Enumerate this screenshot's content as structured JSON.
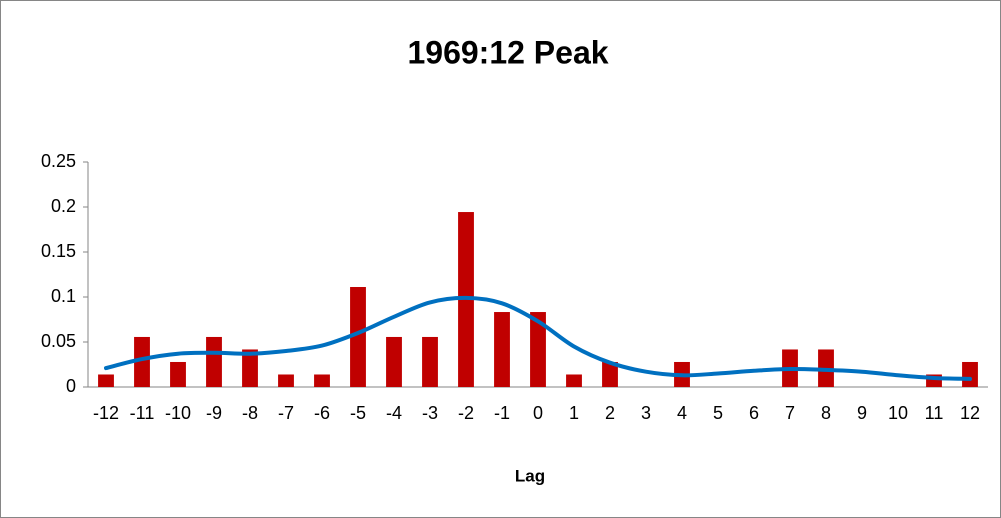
{
  "chart_data": {
    "type": "combo",
    "title": "1969:12 Peak",
    "x_label": "Lag",
    "categories": [
      "-12",
      "-11",
      "-10",
      "-9",
      "-8",
      "-7",
      "-6",
      "-5",
      "-4",
      "-3",
      "-2",
      "-1",
      "0",
      "1",
      "2",
      "3",
      "4",
      "5",
      "6",
      "7",
      "8",
      "9",
      "10",
      "11",
      "12"
    ],
    "series": [
      {
        "type": "bar",
        "color": "#c00000",
        "values": [
          0.0139,
          0.0556,
          0.0278,
          0.0556,
          0.0417,
          0.0139,
          0.0139,
          0.1111,
          0.0556,
          0.0556,
          0.1944,
          0.0833,
          0.0833,
          0.0139,
          0.0278,
          0,
          0.0278,
          0,
          0,
          0.0417,
          0.0417,
          0,
          0,
          0.0139,
          0.0278
        ]
      },
      {
        "type": "line",
        "smooth": true,
        "color": "#0070c0",
        "values": [
          0.021,
          0.031,
          0.037,
          0.038,
          0.037,
          0.04,
          0.046,
          0.06,
          0.078,
          0.094,
          0.099,
          0.093,
          0.073,
          0.045,
          0.027,
          0.017,
          0.013,
          0.015,
          0.018,
          0.02,
          0.019,
          0.017,
          0.013,
          0.01,
          0.009
        ]
      }
    ],
    "ylim": [
      0,
      0.25
    ],
    "yticks": [
      0,
      0.05,
      0.1,
      0.15,
      0.2,
      0.25
    ],
    "grid": false
  }
}
